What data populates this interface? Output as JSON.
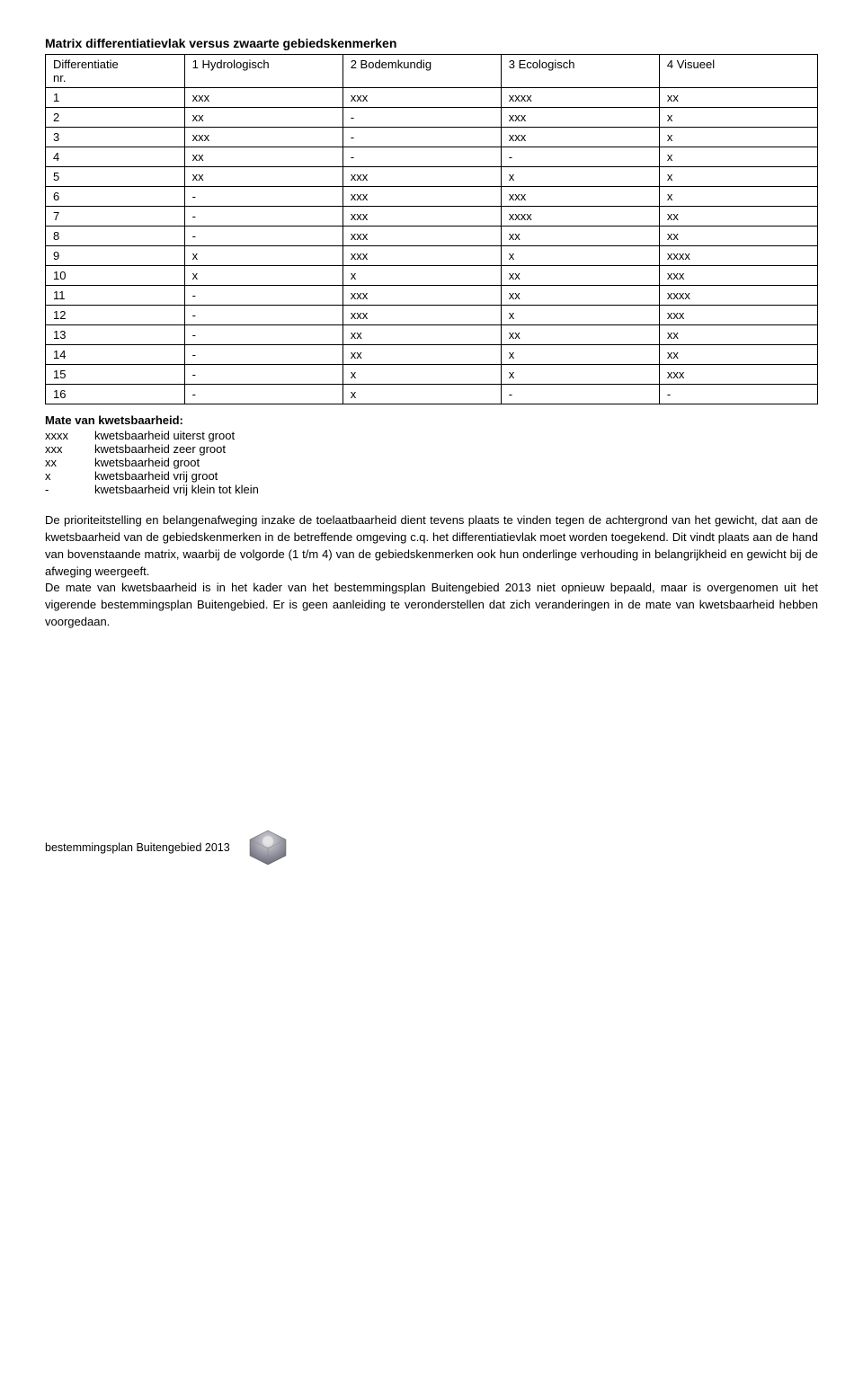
{
  "title": "Matrix differentiatievlak versus zwaarte gebiedskenmerken",
  "table": {
    "header": {
      "col0a": "Differentiatie",
      "col0b": "nr.",
      "col1": "1 Hydrologisch",
      "col2": "2 Bodemkundig",
      "col3": "3 Ecologisch",
      "col4": "4 Visueel"
    },
    "rows": [
      [
        "1",
        "xxx",
        "xxx",
        "xxxx",
        "xx"
      ],
      [
        "2",
        "xx",
        "-",
        "xxx",
        "x"
      ],
      [
        "3",
        "xxx",
        "-",
        "xxx",
        "x"
      ],
      [
        "4",
        "xx",
        "-",
        "-",
        "x"
      ],
      [
        "5",
        "xx",
        "xxx",
        "x",
        "x"
      ],
      [
        "6",
        "-",
        "xxx",
        "xxx",
        "x"
      ],
      [
        "7",
        "-",
        "xxx",
        "xxxx",
        "xx"
      ],
      [
        "8",
        "-",
        "xxx",
        "xx",
        "xx"
      ],
      [
        "9",
        "x",
        "xxx",
        "x",
        "xxxx"
      ],
      [
        "10",
        "x",
        "x",
        "xx",
        "xxx"
      ],
      [
        "11",
        "-",
        "xxx",
        "xx",
        "xxxx"
      ],
      [
        "12",
        "-",
        "xxx",
        "x",
        "xxx"
      ],
      [
        "13",
        "-",
        "xx",
        "xx",
        "xx"
      ],
      [
        "14",
        "-",
        "xx",
        "x",
        "xx"
      ],
      [
        "15",
        "-",
        "x",
        "x",
        "xxx"
      ],
      [
        "16",
        "-",
        "x",
        "-",
        "-"
      ]
    ]
  },
  "legend": {
    "heading": "Mate van kwetsbaarheid:",
    "items": [
      {
        "key": "xxxx",
        "label": "kwetsbaarheid uiterst groot"
      },
      {
        "key": "xxx",
        "label": "kwetsbaarheid zeer groot"
      },
      {
        "key": "xx",
        "label": "kwetsbaarheid groot"
      },
      {
        "key": "x",
        "label": "kwetsbaarheid vrij groot"
      },
      {
        "key": "-",
        "label": "kwetsbaarheid vrij klein tot klein"
      }
    ]
  },
  "paragraphs": {
    "p1": "De prioriteitstelling en belangenafweging inzake de toelaatbaarheid dient tevens plaats te vinden tegen de achtergrond van het gewicht, dat aan de kwetsbaarheid van de gebiedskenmerken in de betreffende omgeving c.q. het differentiatievlak moet worden toegekend. Dit vindt plaats aan de hand van bovenstaande matrix, waarbij de volgorde (1 t/m 4) van de gebiedskenmerken ook hun onderlinge verhouding in belangrijkheid en gewicht bij de afweging weergeeft.",
    "p2": "De mate van kwetsbaarheid is in het kader van het bestemmingsplan Buitengebied 2013 niet opnieuw bepaald, maar is overgenomen uit het vigerende bestemmingsplan Buitengebied. Er is geen aanleiding te veronderstellen dat zich veranderingen in de mate van kwetsbaarheid hebben voorgedaan."
  },
  "footer": "bestemmingsplan Buitengebied 2013"
}
